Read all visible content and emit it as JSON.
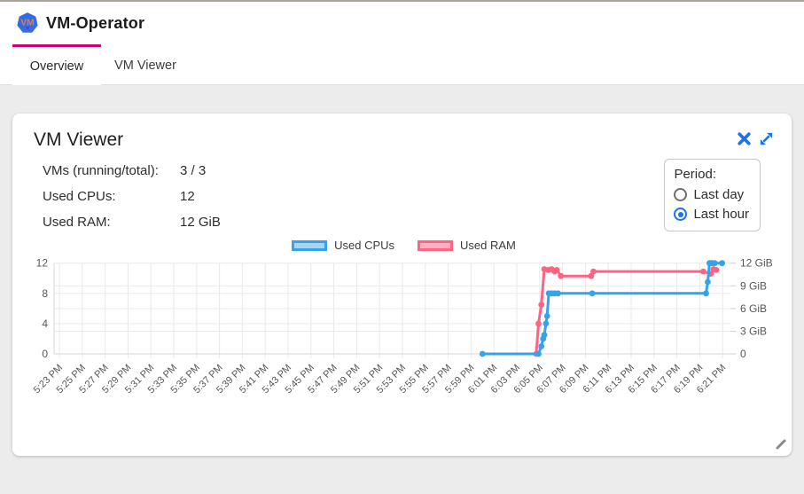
{
  "header": {
    "title": "VM-Operator",
    "logo_text": "VM"
  },
  "tabs": [
    {
      "label": "Overview",
      "active": true
    },
    {
      "label": "VM Viewer",
      "active": false
    }
  ],
  "card": {
    "title": "VM Viewer",
    "stats": [
      {
        "label": "VMs (running/total):",
        "value": "3 / 3"
      },
      {
        "label": "Used CPUs:",
        "value": "12"
      },
      {
        "label": "Used RAM:",
        "value": "12 GiB"
      }
    ],
    "period": {
      "label": "Period:",
      "options": [
        {
          "label": "Last day",
          "selected": false
        },
        {
          "label": "Last hour",
          "selected": true
        }
      ]
    }
  },
  "icons": {
    "logo": "kubernetes-heptagon",
    "close": "close-x",
    "expand": "expand-diagonal-arrows",
    "resize": "resize-grip"
  },
  "colors": {
    "accent_pink": "#d0006f",
    "accent_blue": "#1a73e8",
    "logo_blue": "#326ce5",
    "logo_orange": "#ef7a29",
    "cpu_line": "#36a2eb",
    "cpu_fill": "#a8d4f2",
    "ram_line": "#ff6384",
    "ram_fill": "#ffb1c1",
    "grid": "#e9e9e9",
    "axis_text": "#565656"
  },
  "chart_data": {
    "type": "line",
    "title": "",
    "legend_position": "top-center",
    "grid": true,
    "x_unit": "minutes after 5:23 PM",
    "x_range_minutes": [
      0,
      58
    ],
    "x_ticks": [
      "5:23 PM",
      "5:25 PM",
      "5:27 PM",
      "5:29 PM",
      "5:31 PM",
      "5:33 PM",
      "5:35 PM",
      "5:37 PM",
      "5:39 PM",
      "5:41 PM",
      "5:43 PM",
      "5:45 PM",
      "5:47 PM",
      "5:49 PM",
      "5:51 PM",
      "5:53 PM",
      "5:55 PM",
      "5:57 PM",
      "5:59 PM",
      "6:01 PM",
      "6:03 PM",
      "6:05 PM",
      "6:07 PM",
      "6:09 PM",
      "6:11 PM",
      "6:13 PM",
      "6:15 PM",
      "6:17 PM",
      "6:19 PM",
      "6:21 PM"
    ],
    "left_axis": {
      "label": "",
      "values": [
        0,
        4,
        8,
        12
      ],
      "ticks": [
        "0",
        "4",
        "8",
        "12"
      ],
      "range": [
        0,
        12
      ]
    },
    "right_axis": {
      "label": "",
      "values": [
        0,
        3,
        6,
        9,
        12
      ],
      "ticks": [
        "0",
        "3 GiB",
        "6 GiB",
        "9 GiB",
        "12 GiB"
      ],
      "range": [
        0,
        12
      ]
    },
    "gridline_values": [
      0,
      3,
      4,
      6,
      8,
      9,
      12
    ],
    "series": [
      {
        "name": "Used CPUs",
        "axis": "left",
        "color": "#36a2eb",
        "fill": "#a8d4f2",
        "points": [
          [
            37.0,
            0
          ],
          [
            41.9,
            0
          ],
          [
            42.15,
            1
          ],
          [
            42.3,
            2
          ],
          [
            42.4,
            2.5
          ],
          [
            42.55,
            4
          ],
          [
            42.65,
            5
          ],
          [
            42.8,
            8
          ],
          [
            43.05,
            8
          ],
          [
            43.3,
            8
          ],
          [
            43.6,
            8
          ],
          [
            46.6,
            8
          ],
          [
            56.55,
            8
          ],
          [
            56.7,
            9.5
          ],
          [
            56.85,
            12
          ],
          [
            57.05,
            12
          ],
          [
            57.3,
            12
          ],
          [
            57.95,
            12
          ]
        ]
      },
      {
        "name": "Used RAM",
        "axis": "right",
        "color": "#ff6384",
        "fill": "#ffb1c1",
        "points": [
          [
            41.7,
            0
          ],
          [
            41.9,
            4
          ],
          [
            42.15,
            6.5
          ],
          [
            42.4,
            11.2
          ],
          [
            42.75,
            11.1
          ],
          [
            43.05,
            11.2
          ],
          [
            43.3,
            10.9
          ],
          [
            43.5,
            11.1
          ],
          [
            43.85,
            10.3
          ],
          [
            46.5,
            10.3
          ],
          [
            46.7,
            10.9
          ],
          [
            56.3,
            10.9
          ],
          [
            56.95,
            10.6
          ],
          [
            57.2,
            11.2
          ],
          [
            57.45,
            11.1
          ]
        ]
      }
    ]
  }
}
